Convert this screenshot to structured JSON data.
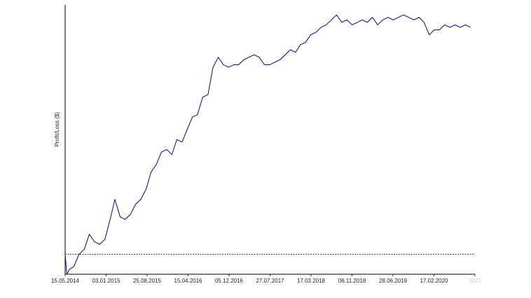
{
  "chart_data": {
    "type": "line",
    "title": "",
    "xlabel": "",
    "ylabel": "Profit/Loss ($)",
    "x_tick_labels": [
      "15.05.2014",
      "03.01.2015",
      "25.08.2015",
      "15.04.2016",
      "05.12.2016",
      "27.07.2017",
      "17.03.2018",
      "06.11.2018",
      "28.06.2019",
      "17.02.2020",
      "2021"
    ],
    "xlim": [
      "2014-05-15",
      "2020-12-31"
    ],
    "ylim": [
      -0.08,
      1.0
    ],
    "y_tick_labels": [],
    "grid": false,
    "baseline": {
      "value": 0,
      "style": "dashed",
      "color": "#000000"
    },
    "series_color": "#1a1a8c",
    "series": [
      {
        "x": [
          "2014-05-15",
          "2014-05-25",
          "2014-06-10",
          "2014-07-05",
          "2014-08-05",
          "2014-09-05",
          "2014-10-05",
          "2014-11-05",
          "2014-12-05",
          "2015-01-05",
          "2015-02-05",
          "2015-03-05",
          "2015-04-05",
          "2015-05-05",
          "2015-06-05",
          "2015-07-05",
          "2015-08-05",
          "2015-09-05",
          "2015-10-05",
          "2015-11-05",
          "2015-12-05",
          "2016-01-05",
          "2016-02-05",
          "2016-03-05",
          "2016-04-05",
          "2016-05-05",
          "2016-06-05",
          "2016-07-05",
          "2016-08-05",
          "2016-09-05",
          "2016-10-05",
          "2016-11-05",
          "2016-12-05",
          "2017-01-05",
          "2017-02-05",
          "2017-03-05",
          "2017-04-05",
          "2017-05-05",
          "2017-06-05",
          "2017-07-05",
          "2017-08-05",
          "2017-09-05",
          "2017-10-05",
          "2017-11-05",
          "2017-12-05",
          "2018-01-05",
          "2018-02-05",
          "2018-03-05",
          "2018-04-05",
          "2018-05-05",
          "2018-06-05",
          "2018-07-05",
          "2018-08-05",
          "2018-09-05",
          "2018-10-05",
          "2018-11-05",
          "2018-12-05",
          "2019-01-05",
          "2019-02-05",
          "2019-03-05",
          "2019-04-05",
          "2019-05-05",
          "2019-06-05",
          "2019-07-05",
          "2019-08-05",
          "2019-09-05",
          "2019-10-05",
          "2019-11-05",
          "2019-12-05",
          "2020-01-05",
          "2020-02-05",
          "2020-03-05",
          "2020-04-05",
          "2020-05-05",
          "2020-06-05",
          "2020-07-05",
          "2020-08-05",
          "2020-09-05",
          "2020-10-05",
          "2020-11-05",
          "2020-12-05"
        ],
        "values": [
          0.0,
          -0.08,
          -0.06,
          -0.05,
          0.0,
          0.02,
          0.08,
          0.05,
          0.04,
          0.06,
          0.14,
          0.22,
          0.15,
          0.14,
          0.16,
          0.2,
          0.22,
          0.26,
          0.33,
          0.36,
          0.41,
          0.42,
          0.4,
          0.46,
          0.45,
          0.5,
          0.55,
          0.56,
          0.63,
          0.64,
          0.75,
          0.79,
          0.76,
          0.75,
          0.76,
          0.76,
          0.78,
          0.79,
          0.8,
          0.79,
          0.76,
          0.76,
          0.77,
          0.78,
          0.8,
          0.82,
          0.81,
          0.84,
          0.85,
          0.88,
          0.89,
          0.91,
          0.92,
          0.94,
          0.96,
          0.93,
          0.94,
          0.92,
          0.93,
          0.94,
          0.93,
          0.95,
          0.92,
          0.94,
          0.95,
          0.94,
          0.95,
          0.96,
          0.95,
          0.94,
          0.95,
          0.93,
          0.88,
          0.9,
          0.9,
          0.92,
          0.91,
          0.92,
          0.91,
          0.92,
          0.91
        ]
      }
    ]
  }
}
